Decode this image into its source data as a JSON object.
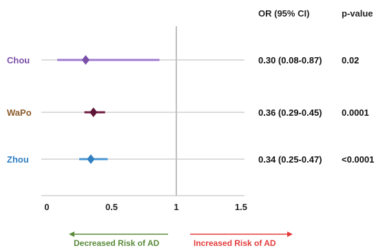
{
  "chart_data": {
    "type": "forest",
    "x_ticks": [
      "0",
      "0.5",
      "1",
      "1.5"
    ],
    "x_tick_values": [
      0,
      0.5,
      1,
      1.5
    ],
    "xlim": [
      0,
      1.5
    ],
    "reference_line": 1,
    "columns": {
      "estimate": "OR (95% CI)",
      "p": "p-value"
    },
    "studies": [
      {
        "name": "Chou",
        "or": 0.3,
        "ci_low": 0.08,
        "ci_high": 0.87,
        "or_text": "0.30 (0.08-0.87)",
        "p_text": "0.02",
        "color": "#7a4fa8",
        "label_color": "#7a4fa8",
        "line_color": "#9f7bd0"
      },
      {
        "name": "WaPo",
        "or": 0.36,
        "ci_low": 0.29,
        "ci_high": 0.45,
        "or_text": "0.36 (0.29-0.45)",
        "p_text": "0.0001",
        "color": "#5e1538",
        "label_color": "#8a5a2b",
        "line_color": "#6e1a40"
      },
      {
        "name": "Zhou",
        "or": 0.34,
        "ci_low": 0.25,
        "ci_high": 0.47,
        "or_text": "0.34 (0.25-0.47)",
        "p_text": "<0.0001",
        "color": "#2f7fc1",
        "label_color": "#2f7fc1",
        "line_color": "#4a95d2"
      }
    ],
    "direction_labels": {
      "decreased": {
        "text": "Decreased Risk of AD",
        "color": "#5a8a3a"
      },
      "increased": {
        "text": "Increased Risk of AD",
        "color": "#e33b3b"
      }
    },
    "grid_color": "#c8c8c8"
  }
}
